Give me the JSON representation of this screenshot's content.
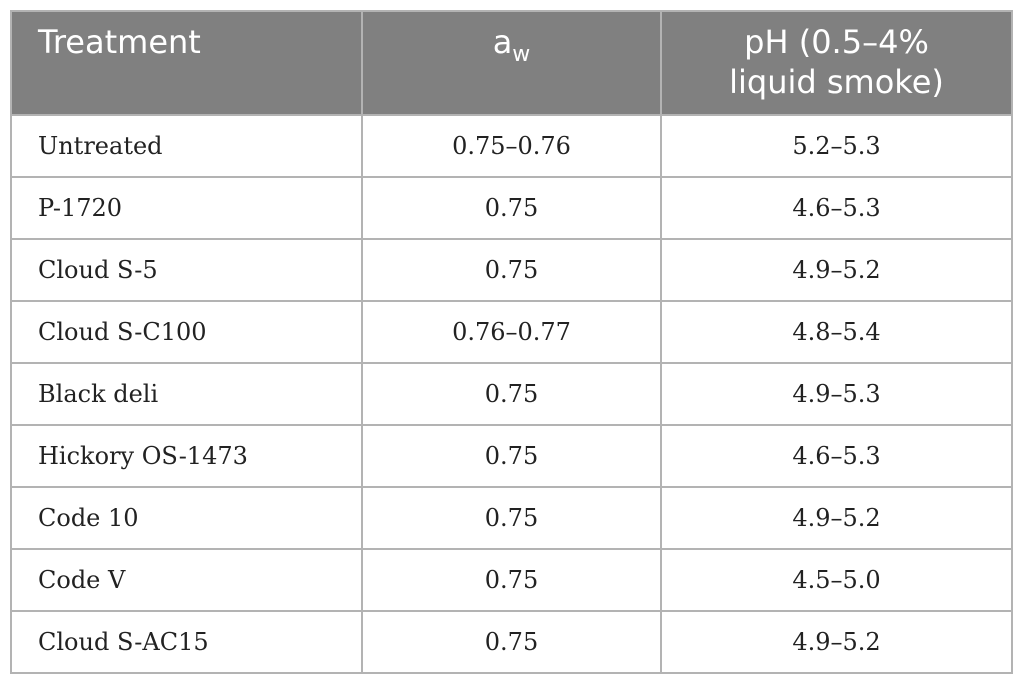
{
  "header": {
    "treatment": "Treatment",
    "aw_base": "a",
    "aw_sub": "w",
    "ph": "pH (0.5–4% liquid smoke)"
  },
  "rows": [
    {
      "treatment": "Untreated",
      "aw": "0.75–0.76",
      "ph": "5.2–5.3"
    },
    {
      "treatment": "P-1720",
      "aw": "0.75",
      "ph": "4.6–5.3"
    },
    {
      "treatment": "Cloud S-5",
      "aw": "0.75",
      "ph": "4.9–5.2"
    },
    {
      "treatment": "Cloud S-C100",
      "aw": "0.76–0.77",
      "ph": "4.8–5.4"
    },
    {
      "treatment": "Black deli",
      "aw": "0.75",
      "ph": "4.9–5.3"
    },
    {
      "treatment": "Hickory OS-1473",
      "aw": "0.75",
      "ph": "4.6–5.3"
    },
    {
      "treatment": "Code 10",
      "aw": "0.75",
      "ph": "4.9–5.2"
    },
    {
      "treatment": "Code V",
      "aw": "0.75",
      "ph": "4.5–5.0"
    },
    {
      "treatment": "Cloud S-AC15",
      "aw": "0.75",
      "ph": "4.9–5.2"
    }
  ],
  "colors": {
    "header_bg": "#808080",
    "header_text": "#ffffff",
    "grid": "#b3b3b3",
    "body_text": "#222222"
  }
}
